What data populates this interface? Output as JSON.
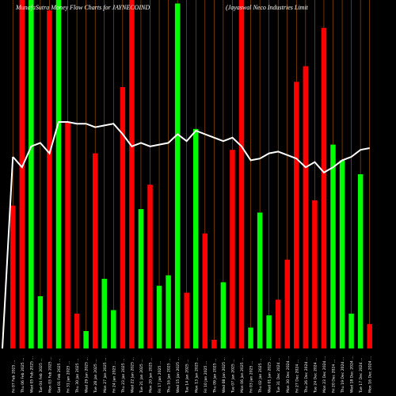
{
  "header": {
    "title_left": "MunafaSutra Money Flow  Charts for JAYNECOIND",
    "title_right": "(Jayaswal Neco   Industries Limit"
  },
  "colors": {
    "background": "#000000",
    "up": "#00ff00",
    "down": "#ff0000",
    "grid": "#b05a00",
    "line": "#ffffff",
    "text": "#ffffff"
  },
  "chart_data": {
    "type": "bar",
    "ylim": [
      0,
      100
    ],
    "grid": "vertical",
    "categories": [
      "Fri 07 Feb 2025 ...",
      "Thu 06 Feb 2025 ...",
      "Wed 05 Feb 2025 ...",
      "Tue 04 Feb 2025 ...",
      "Mon 03 Feb 2025 ...",
      "Sat 01 Feb 2025 ...",
      "Fri 31 Jan 2025 ...",
      "Thu 30 Jan 2025 ...",
      "Wed 29 Jan 2025 ...",
      "Tue 28 Jan 2025 ...",
      "Mon 27 Jan 2025 ...",
      "Fri 24 Jan 2025 ...",
      "Thu 23 Jan 2025 ...",
      "Wed 22 Jan 2025 ...",
      "Tue 21 Jan 2025 ...",
      "Mon 20 Jan 2025 ...",
      "Fri 17 Jan 2025 ...",
      "Thu 16 Jan 2025 ...",
      "Wed 15 Jan 2025 ...",
      "Tue 14 Jan 2025 ...",
      "Mon 13 Jan 2025 ...",
      "Fri 10 Jan 2025 ...",
      "Thu 09 Jan 2025 ...",
      "Wed 08 Jan 2025 ...",
      "Tue 07 Jan 2025 ...",
      "Mon 06 Jan 2025 ...",
      "Fri 03 Jan 2025 ...",
      "Thu 02 Jan 2025 ...",
      "Wed 01 Jan 2025 ...",
      "Tue 31 Dec 2024 ...",
      "Mon 30 Dec 2024 ...",
      "Fri 27 Dec 2024 ...",
      "Thu 26 Dec 2024 ...",
      "Tue 24 Dec 2024 ...",
      "Mon 23 Dec 2024 ...",
      "Fri 20 Dec 2024 ...",
      "Thu 19 Dec 2024 ...",
      "Wed 18 Dec 2024 ...",
      "Tue 17 Dec 2024 ...",
      "Mon 16 Dec 2024 ..."
    ],
    "bars": [
      {
        "dir": "down",
        "value": 41
      },
      {
        "dir": "down",
        "value": 100
      },
      {
        "dir": "up",
        "value": 100
      },
      {
        "dir": "up",
        "value": 15
      },
      {
        "dir": "down",
        "value": 97
      },
      {
        "dir": "up",
        "value": 100
      },
      {
        "dir": "down",
        "value": 65
      },
      {
        "dir": "down",
        "value": 10
      },
      {
        "dir": "up",
        "value": 5
      },
      {
        "dir": "down",
        "value": 56
      },
      {
        "dir": "up",
        "value": 20
      },
      {
        "dir": "up",
        "value": 11
      },
      {
        "dir": "down",
        "value": 75
      },
      {
        "dir": "down",
        "value": 100
      },
      {
        "dir": "up",
        "value": 40
      },
      {
        "dir": "down",
        "value": 47
      },
      {
        "dir": "up",
        "value": 18
      },
      {
        "dir": "up",
        "value": 21
      },
      {
        "dir": "up",
        "value": 99
      },
      {
        "dir": "down",
        "value": 16
      },
      {
        "dir": "up",
        "value": 63
      },
      {
        "dir": "down",
        "value": 33
      },
      {
        "dir": "down",
        "value": 2.5
      },
      {
        "dir": "up",
        "value": 19
      },
      {
        "dir": "down",
        "value": 57
      },
      {
        "dir": "down",
        "value": 100
      },
      {
        "dir": "up",
        "value": 6
      },
      {
        "dir": "up",
        "value": 39
      },
      {
        "dir": "up",
        "value": 9.5
      },
      {
        "dir": "down",
        "value": 14
      },
      {
        "dir": "down",
        "value": 25.5
      },
      {
        "dir": "down",
        "value": 76.5
      },
      {
        "dir": "down",
        "value": 81
      },
      {
        "dir": "down",
        "value": 42.5
      },
      {
        "dir": "down",
        "value": 92
      },
      {
        "dir": "up",
        "value": 58.5
      },
      {
        "dir": "up",
        "value": 54
      },
      {
        "dir": "up",
        "value": 10
      },
      {
        "dir": "up",
        "value": 50
      },
      {
        "dir": "down",
        "value": 7
      }
    ],
    "line": [
      55,
      52,
      58,
      59,
      56,
      65,
      65,
      64.5,
      64.5,
      63.5,
      64,
      64.5,
      61.5,
      58,
      59,
      58,
      58.5,
      59,
      61.5,
      59.5,
      62.5,
      61.5,
      60.5,
      59.5,
      60.5,
      58,
      54,
      54.5,
      56,
      56.5,
      55.5,
      54.5,
      52,
      53.5,
      50.5,
      52,
      54,
      55,
      57,
      57.5
    ]
  }
}
